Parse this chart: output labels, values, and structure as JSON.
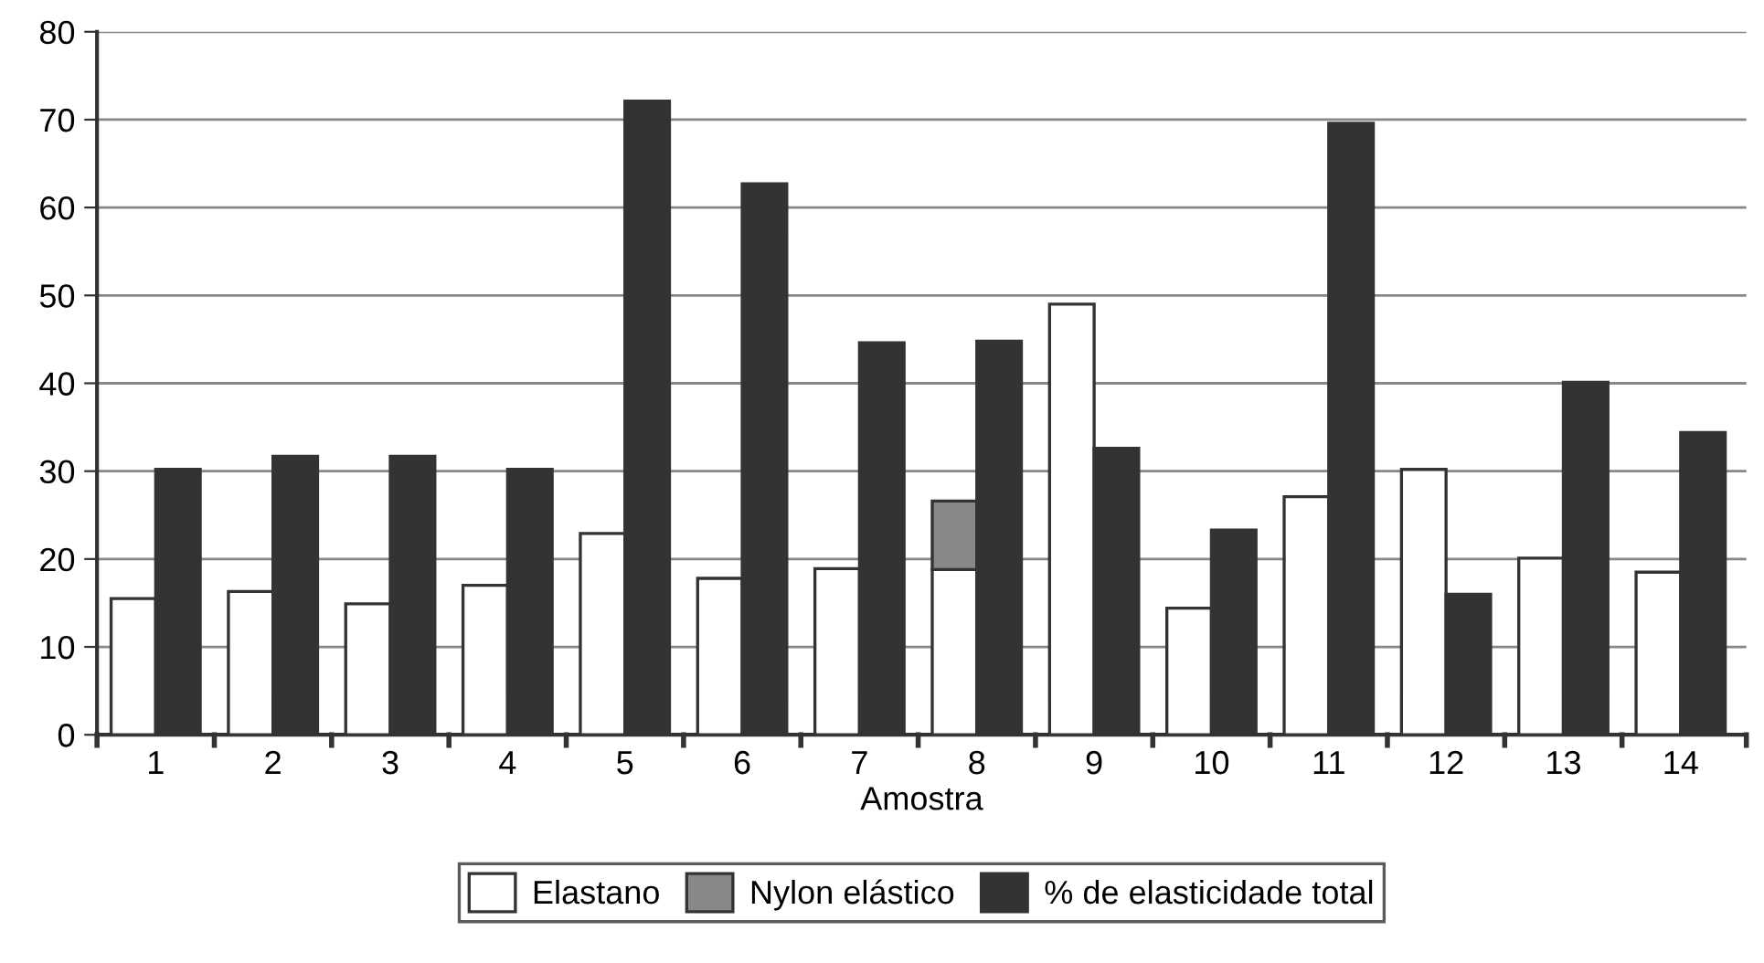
{
  "chart_data": {
    "type": "bar",
    "xlabel": "Amostra",
    "categories": [
      "1",
      "2",
      "3",
      "4",
      "5",
      "6",
      "7",
      "8",
      "9",
      "10",
      "11",
      "12",
      "13",
      "14"
    ],
    "series": [
      {
        "name": "Elastano",
        "color": "#ffffff",
        "values": [
          15.5,
          16.3,
          14.9,
          17.0,
          22.9,
          17.8,
          18.9,
          18.8,
          49.0,
          14.4,
          27.1,
          30.2,
          20.1,
          18.5
        ]
      },
      {
        "name": "Nylon elástico",
        "color": "#888888",
        "base": [
          null,
          null,
          null,
          null,
          null,
          null,
          null,
          18.8,
          null,
          null,
          null,
          null,
          null,
          null
        ],
        "values": [
          null,
          null,
          null,
          null,
          null,
          null,
          null,
          7.8,
          null,
          null,
          null,
          null,
          null,
          null
        ]
      },
      {
        "name": "% de elasticidade total",
        "color": "#333333",
        "values": [
          30.2,
          31.7,
          31.7,
          30.2,
          72.1,
          62.7,
          44.6,
          44.8,
          32.6,
          23.3,
          69.6,
          16.0,
          40.1,
          34.4
        ]
      }
    ],
    "ylim": [
      0,
      80
    ],
    "yticks": [
      0,
      10,
      20,
      30,
      40,
      50,
      60,
      70,
      80
    ],
    "grid": "y",
    "legend": "bottom"
  }
}
